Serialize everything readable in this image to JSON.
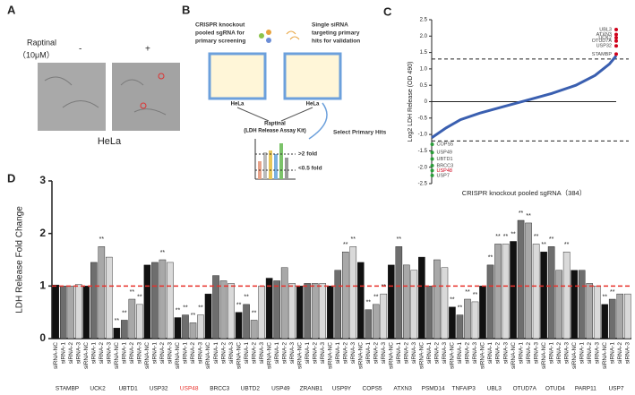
{
  "panels": [
    "A",
    "B",
    "C",
    "D"
  ],
  "panel_a": {
    "treatment": "Raptinal",
    "dose": "（10μM）",
    "minus": "-",
    "plus": "+",
    "cell": "HeLa"
  },
  "panel_b": {
    "left_caption": [
      "CRISPR knockout",
      "pooled sgRNA for",
      "primary screening"
    ],
    "right_caption": [
      "Single siRNA",
      "targeting primary",
      "hits for validation"
    ],
    "left_plate": "HeLa",
    "right_plate": "HeLa",
    "assay": [
      "Raptinal",
      "(LDH Release Assay Kit)"
    ],
    "select": "Select Primary Hits",
    "high": ">2 fold",
    "low": "<0.5 fold"
  },
  "chart_data": [
    {
      "type": "rank",
      "ylabel": "Log2 LDH Release (OD 490)",
      "xlabel": "CRISPR knockout pooled sgRNA（384）",
      "xlim": [
        0,
        384
      ],
      "ylim": [
        -2.5,
        2.5
      ],
      "yticks": [
        {
          "value": 2.5,
          "label": "2.5"
        },
        {
          "value": 2,
          "label": "2.0"
        },
        {
          "value": 1.5,
          "label": "1.5"
        },
        {
          "value": 1,
          "label": "1.0"
        },
        {
          "value": 0.5,
          "label": "0.5"
        },
        0,
        -0.5,
        {
          "value": -1,
          "label": "-1.0"
        },
        -1.5,
        {
          "value": -2,
          "label": "-2.0"
        },
        -2.5
      ],
      "thresholds": [
        1.3,
        -1.2
      ],
      "curve": {
        "color": "#3a5fb0",
        "x": [
          0,
          10,
          30,
          60,
          100,
          150,
          200,
          250,
          300,
          340,
          370,
          384
        ],
        "y": [
          -1.1,
          -1.0,
          -0.8,
          -0.55,
          -0.35,
          -0.15,
          0.05,
          0.25,
          0.5,
          0.8,
          1.15,
          1.4
        ]
      },
      "top_hits": {
        "color": "#d0021b",
        "names": [
          "UBL3",
          "ATXN3",
          "UCK2",
          "OTUD7A",
          "USP32",
          "STAMBP"
        ],
        "x": [
          384,
          384,
          384,
          384,
          384,
          384
        ],
        "values": [
          2.2,
          2.05,
          1.95,
          1.85,
          1.7,
          1.45
        ]
      },
      "bottom_hits": {
        "color": "#2a9d3a",
        "names": [
          "COPS5",
          "USP49",
          "UBTD1",
          "BRCC3",
          "USP48",
          "USP7"
        ],
        "name_colors": [
          "#444",
          "#444",
          "#444",
          "#444",
          "#d0021b",
          "#444"
        ],
        "x": [
          1,
          1,
          1,
          1,
          1,
          1
        ],
        "values": [
          -1.3,
          -1.55,
          -1.75,
          -1.95,
          -2.1,
          -2.25
        ]
      }
    },
    {
      "type": "grouped_bar",
      "ylabel": "LDH Release Fold Change",
      "ylim": [
        0,
        3
      ],
      "yticks": [
        0,
        1,
        2,
        3
      ],
      "bar_labels": [
        "siRNA-NC",
        "siRNA-1",
        "siRNA-2",
        "siRNA-3"
      ],
      "bar_colors": [
        "#111111",
        "#6e6e6e",
        "#a8a8a8",
        "#d9d9d9"
      ],
      "reference_line": {
        "value": 1,
        "color": "#e8302a"
      },
      "groups": [
        {
          "name": "STAMBP",
          "values": [
            1.02,
            1.0,
            1.0,
            1.03
          ],
          "significance": [
            null,
            null,
            null,
            null
          ]
        },
        {
          "name": "UCK2",
          "values": [
            1.0,
            1.45,
            1.75,
            1.55
          ],
          "significance": [
            null,
            null,
            "**",
            null
          ]
        },
        {
          "name": "UBTD1",
          "values": [
            0.2,
            0.35,
            0.75,
            0.65
          ],
          "significance": [
            "**",
            "**",
            "**",
            "**"
          ]
        },
        {
          "name": "USP32",
          "values": [
            1.4,
            1.45,
            1.5,
            1.45
          ],
          "significance": [
            null,
            null,
            "**",
            null
          ]
        },
        {
          "name": "USP48",
          "name_color": "#e8302a",
          "values": [
            0.4,
            0.45,
            0.3,
            0.45
          ],
          "significance": [
            "**",
            "**",
            "**",
            "**"
          ]
        },
        {
          "name": "BRCC3",
          "values": [
            0.85,
            1.2,
            1.1,
            1.05
          ],
          "significance": [
            null,
            null,
            null,
            null
          ]
        },
        {
          "name": "UBTD2",
          "values": [
            0.5,
            0.65,
            0.35,
            1.0
          ],
          "significance": [
            "**",
            "**",
            "**",
            null
          ]
        },
        {
          "name": "USP49",
          "values": [
            1.15,
            1.1,
            1.35,
            1.05
          ],
          "significance": [
            null,
            null,
            null,
            null
          ]
        },
        {
          "name": "ZRANB1",
          "values": [
            1.0,
            1.05,
            1.05,
            1.05
          ],
          "significance": [
            null,
            null,
            null,
            null
          ]
        },
        {
          "name": "USP9Y",
          "values": [
            1.0,
            1.3,
            1.65,
            1.75
          ],
          "significance": [
            null,
            null,
            "**",
            "**"
          ]
        },
        {
          "name": "COPS5",
          "values": [
            1.45,
            0.55,
            0.65,
            0.85
          ],
          "significance": [
            null,
            "**",
            "**",
            "**"
          ]
        },
        {
          "name": "ATXN3",
          "values": [
            1.4,
            1.75,
            1.4,
            1.3
          ],
          "significance": [
            null,
            "**",
            null,
            null
          ]
        },
        {
          "name": "PSMD14",
          "values": [
            1.55,
            1.0,
            1.5,
            1.35
          ],
          "significance": [
            null,
            null,
            null,
            null
          ]
        },
        {
          "name": "TNFAIP3",
          "values": [
            0.6,
            0.45,
            0.75,
            0.7
          ],
          "significance": [
            "**",
            "**",
            "**",
            "**"
          ]
        },
        {
          "name": "UBL3",
          "values": [
            1.0,
            1.4,
            1.8,
            1.8
          ],
          "significance": [
            null,
            "**",
            "**",
            "**"
          ]
        },
        {
          "name": "OTUD7A",
          "values": [
            1.85,
            2.25,
            2.2,
            1.8
          ],
          "significance": [
            "**",
            "**",
            "**",
            "**"
          ]
        },
        {
          "name": "OTUD4",
          "values": [
            1.65,
            1.75,
            1.3,
            1.65
          ],
          "significance": [
            "**",
            "**",
            null,
            "**"
          ]
        },
        {
          "name": "PARP11",
          "values": [
            1.3,
            1.3,
            1.05,
            1.0
          ],
          "significance": [
            null,
            null,
            null,
            null
          ]
        },
        {
          "name": "USP7",
          "values": [
            0.65,
            0.75,
            0.85,
            0.85
          ],
          "significance": [
            "**",
            "**",
            null,
            null
          ]
        }
      ]
    }
  ]
}
